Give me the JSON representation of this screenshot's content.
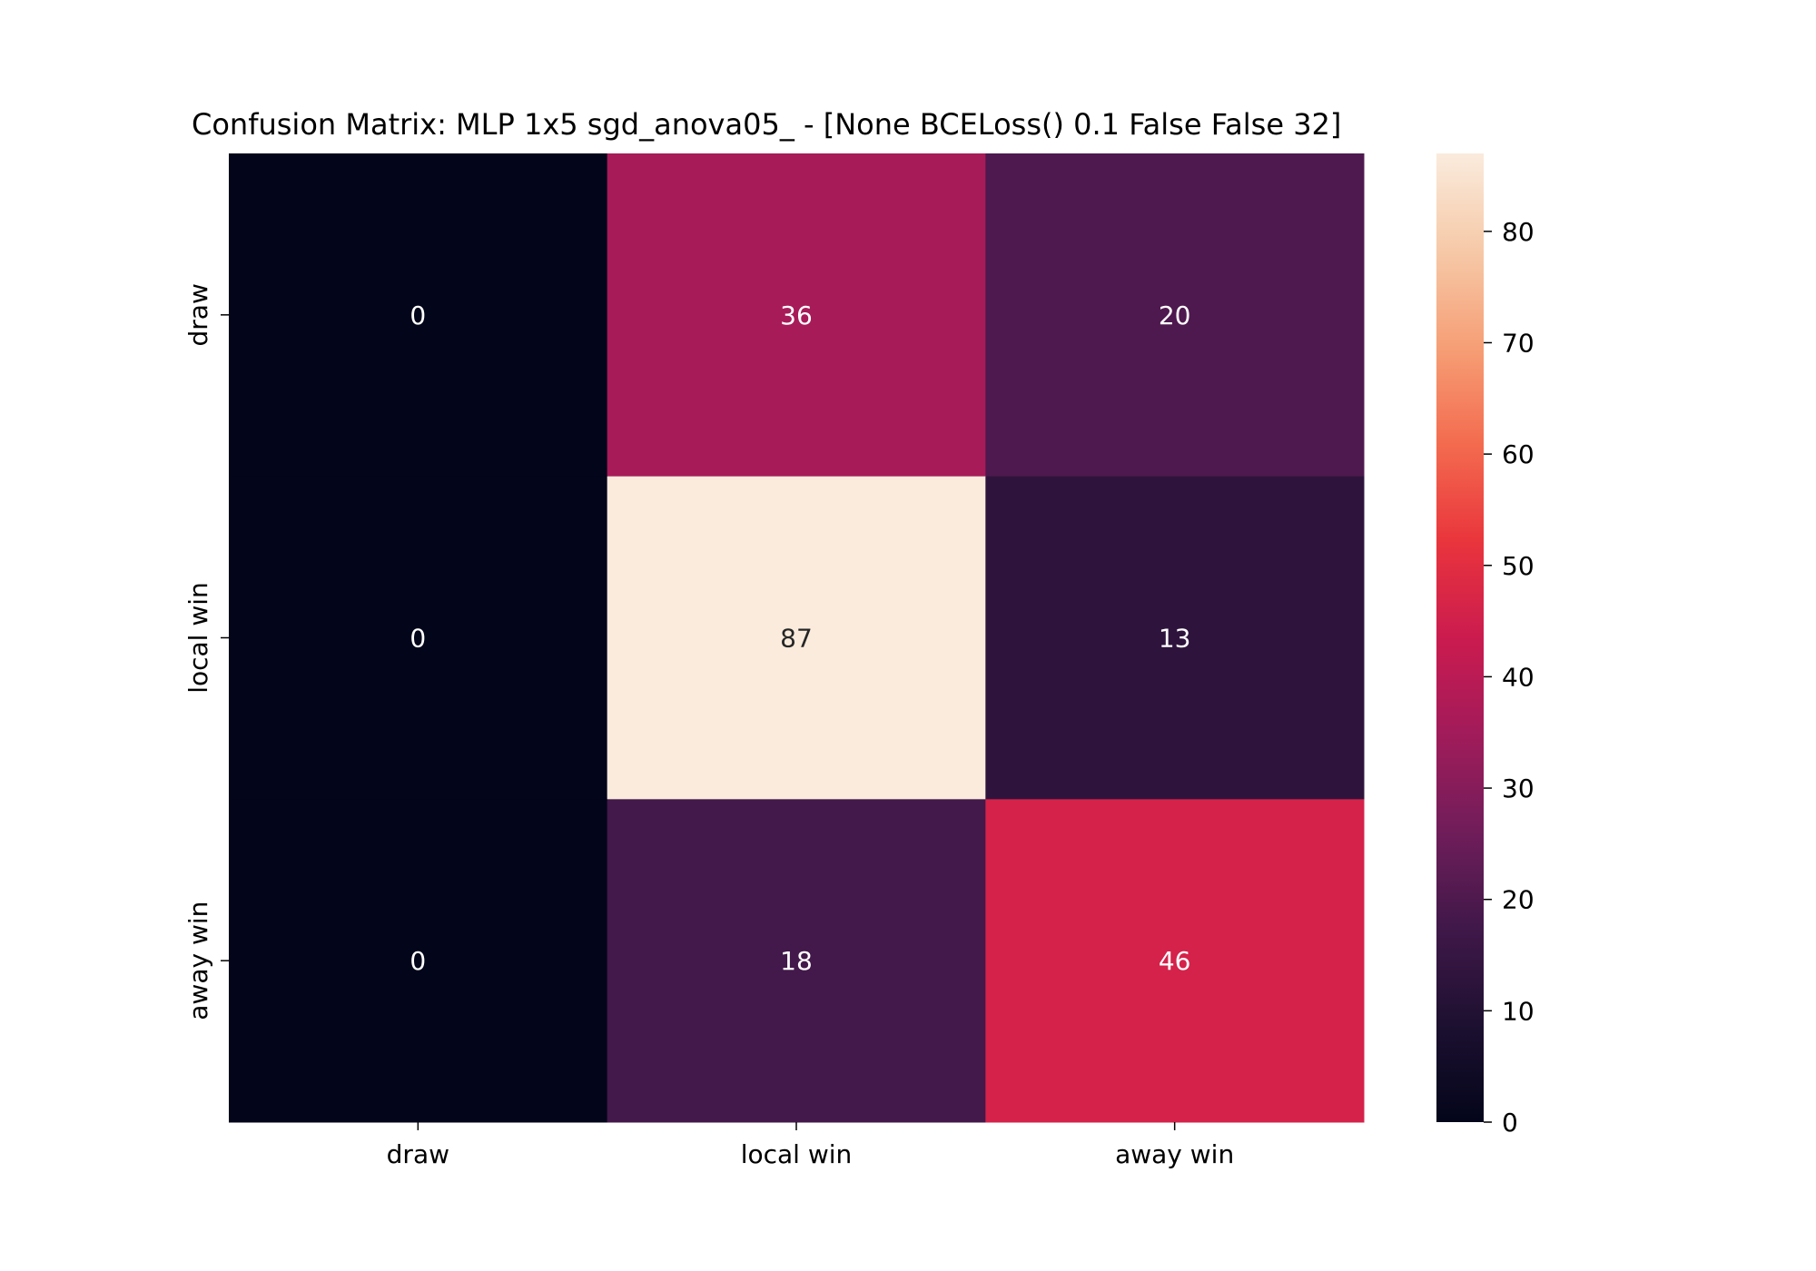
{
  "chart_data": {
    "type": "heatmap",
    "title": "Confusion Matrix: MLP 1x5 sgd_anova05_ - [None BCELoss() 0.1 False False 32]",
    "xlabel": "",
    "ylabel": "",
    "x_categories": [
      "draw",
      "local win",
      "away win"
    ],
    "y_categories": [
      "draw",
      "local win",
      "away win"
    ],
    "values": [
      [
        0,
        36,
        20
      ],
      [
        0,
        87,
        13
      ],
      [
        0,
        18,
        46
      ]
    ],
    "colorbar": {
      "min": 0,
      "max": 87,
      "ticks": [
        0,
        10,
        20,
        30,
        40,
        50,
        60,
        70,
        80
      ],
      "colormap": "rocket"
    },
    "annotate": true,
    "grid": false
  }
}
